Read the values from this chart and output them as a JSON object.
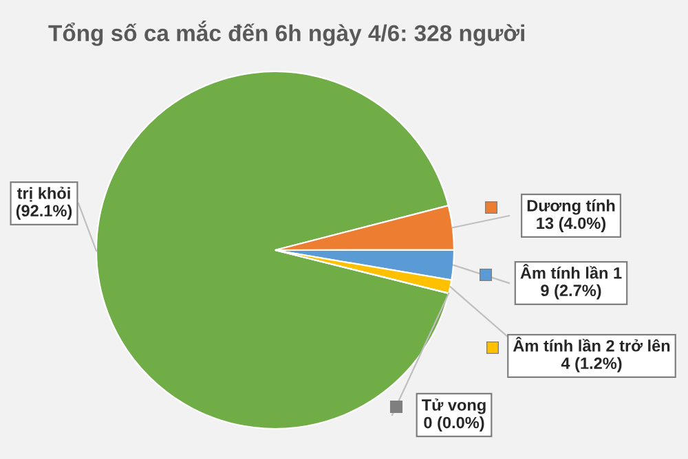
{
  "chart_data": {
    "type": "pie",
    "title": "Tổng số ca mắc đến 6h ngày 4/6: 328 người",
    "categories": [
      "trị khỏi",
      "Dương tính",
      "Âm tính lần 1",
      "Âm tính lần 2 trở lên",
      "Tử vong"
    ],
    "values": [
      92.1,
      4.0,
      2.7,
      1.2,
      0.0
    ],
    "colors": [
      "#70ad47",
      "#ed7d31",
      "#5b9bd5",
      "#ffc000",
      "#7f7f7f"
    ],
    "value_labels": [
      "(92.1%)",
      "13 (4.0%)",
      "9 (2.7%)",
      "4 (1.2%)",
      "0 (0.0%)"
    ],
    "legend": "right"
  }
}
